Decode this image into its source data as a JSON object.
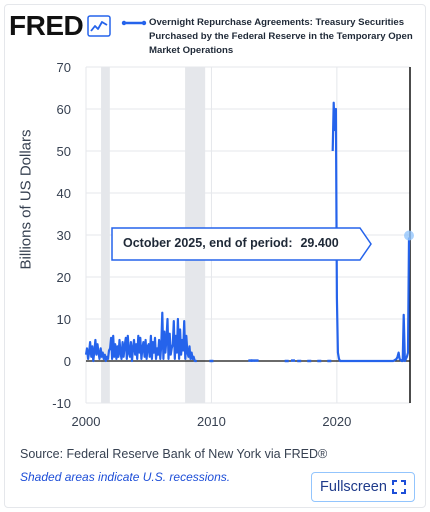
{
  "logo": {
    "text": "FRED",
    "icon": "line-chart-icon"
  },
  "legend": {
    "series_name": "Overnight Repurchase Agreements: Treasury Securities Purchased by the Federal Reserve in the Temporary Open Market Operations",
    "color": "#2563eb"
  },
  "tooltip": {
    "label": "October 2025, end of period:",
    "value": "29.400"
  },
  "footer": {
    "source": "Source: Federal Reserve Bank of New York via FRED®",
    "recession_note": "Shaded areas indicate U.S. recessions."
  },
  "fullscreen": {
    "label": "Fullscreen",
    "icon": "expand-icon"
  },
  "colors": {
    "series": "#2563eb",
    "recession": "#e5e7eb",
    "grid": "#e5e7eb",
    "zero_line": "#111111",
    "link": "#1d4ed8"
  },
  "chart_data": {
    "type": "line",
    "title": "",
    "xlabel": "",
    "ylabel": "Billions of US Dollars",
    "xlim": [
      2000,
      2025.83
    ],
    "ylim": [
      -10,
      70
    ],
    "yticks": [
      -10,
      0,
      10,
      20,
      30,
      40,
      50,
      60,
      70
    ],
    "xticks": [
      2000,
      2010,
      2020
    ],
    "grid": true,
    "legend_position": "top",
    "recessions": [
      [
        2001.2,
        2001.9
      ],
      [
        2007.9,
        2009.5
      ]
    ],
    "highlight": {
      "x": 2025.75,
      "y": 29.4
    },
    "series": [
      {
        "name": "Overnight Repurchase Agreements: Treasury Securities Purchased by the Federal Reserve in the Temporary Open Market Operations",
        "x": [
          2000.0,
          2000.08,
          2000.17,
          2000.25,
          2000.33,
          2000.42,
          2000.5,
          2000.58,
          2000.67,
          2000.75,
          2000.83,
          2000.92,
          2001.0,
          2001.08,
          2001.17,
          2001.25,
          2001.33,
          2001.42,
          2001.5,
          2001.58,
          2001.67,
          2001.75,
          2001.83,
          2001.92,
          2002.0,
          2002.08,
          2002.17,
          2002.25,
          2002.33,
          2002.42,
          2002.5,
          2002.58,
          2002.67,
          2002.75,
          2002.83,
          2002.92,
          2003.0,
          2003.08,
          2003.17,
          2003.25,
          2003.33,
          2003.42,
          2003.5,
          2003.58,
          2003.67,
          2003.75,
          2003.83,
          2003.92,
          2004.0,
          2004.08,
          2004.17,
          2004.25,
          2004.33,
          2004.42,
          2004.5,
          2004.58,
          2004.67,
          2004.75,
          2004.83,
          2004.92,
          2005.0,
          2005.08,
          2005.17,
          2005.25,
          2005.33,
          2005.42,
          2005.5,
          2005.58,
          2005.67,
          2005.75,
          2005.83,
          2005.92,
          2006.0,
          2006.08,
          2006.17,
          2006.25,
          2006.33,
          2006.42,
          2006.5,
          2006.58,
          2006.67,
          2006.75,
          2006.83,
          2006.92,
          2007.0,
          2007.08,
          2007.17,
          2007.25,
          2007.33,
          2007.42,
          2007.5,
          2007.58,
          2007.67,
          2007.75,
          2007.83,
          2007.92,
          2008.0,
          2008.08,
          2008.17,
          2008.25,
          2008.33,
          2008.42,
          2008.5,
          2008.58,
          2008.67,
          2008.75,
          2008.83
        ],
        "y": [
          1.5,
          3.0,
          0.5,
          2.0,
          4.5,
          1.0,
          3.5,
          0.0,
          2.5,
          5.0,
          1.5,
          4.0,
          2.0,
          0.5,
          3.0,
          1.0,
          2.0,
          0.5,
          1.5,
          0.0,
          1.0,
          0.5,
          2.5,
          3.0,
          5.5,
          0.5,
          6.0,
          1.0,
          4.0,
          0.5,
          3.5,
          1.0,
          5.0,
          2.0,
          0.5,
          4.5,
          1.0,
          3.5,
          5.5,
          0.5,
          6.0,
          2.0,
          1.0,
          4.5,
          0.0,
          3.0,
          5.0,
          1.5,
          4.0,
          0.5,
          6.0,
          2.0,
          5.5,
          0.5,
          3.0,
          4.5,
          1.0,
          5.0,
          0.5,
          3.5,
          4.0,
          1.0,
          6.0,
          0.5,
          4.5,
          2.0,
          5.5,
          0.5,
          3.0,
          1.5,
          5.0,
          0.5,
          4.0,
          11.5,
          0.5,
          7.0,
          2.0,
          5.5,
          10.0,
          0.5,
          6.5,
          1.5,
          3.0,
          4.0,
          9.5,
          0.5,
          6.0,
          2.0,
          10.0,
          0.5,
          7.5,
          1.5,
          5.0,
          2.5,
          9.5,
          0.5,
          6.0,
          2.0,
          1.0,
          3.5,
          0.5,
          2.0,
          0.5,
          1.0,
          0.0,
          0.0,
          0.0
        ]
      }
    ],
    "extra_points": [
      {
        "x": 2010.0,
        "y": 0.0
      },
      {
        "x": 2013.1,
        "y": 0.1
      },
      {
        "x": 2013.3,
        "y": 0.1
      },
      {
        "x": 2013.6,
        "y": 0.1
      },
      {
        "x": 2016.0,
        "y": 0.0
      },
      {
        "x": 2016.5,
        "y": 0.1
      },
      {
        "x": 2017.0,
        "y": 0.0
      },
      {
        "x": 2017.8,
        "y": 0.0
      },
      {
        "x": 2018.6,
        "y": 0.0
      },
      {
        "x": 2019.4,
        "y": 0.0
      }
    ],
    "series2": {
      "x": [
        2019.67,
        2019.75,
        2019.83,
        2019.92,
        2020.0,
        2020.08,
        2020.17,
        2020.25,
        2020.33,
        2020.5,
        2020.75,
        2021.0,
        2021.5,
        2022.0,
        2022.5,
        2023.0,
        2023.5,
        2024.0,
        2024.5,
        2024.75,
        2024.83,
        2024.92,
        2025.0,
        2025.17,
        2025.25,
        2025.33,
        2025.42,
        2025.5,
        2025.58,
        2025.67,
        2025.75
      ],
      "y": [
        50.0,
        61.5,
        55.0,
        60.0,
        15.0,
        2.0,
        0.5,
        0.0,
        0.0,
        0.0,
        0.0,
        0.0,
        0.0,
        0.0,
        0.0,
        0.0,
        0.0,
        0.0,
        0.0,
        0.5,
        1.0,
        2.0,
        0.5,
        0.0,
        0.0,
        11.0,
        0.0,
        0.5,
        1.0,
        2.0,
        29.4
      ]
    }
  }
}
